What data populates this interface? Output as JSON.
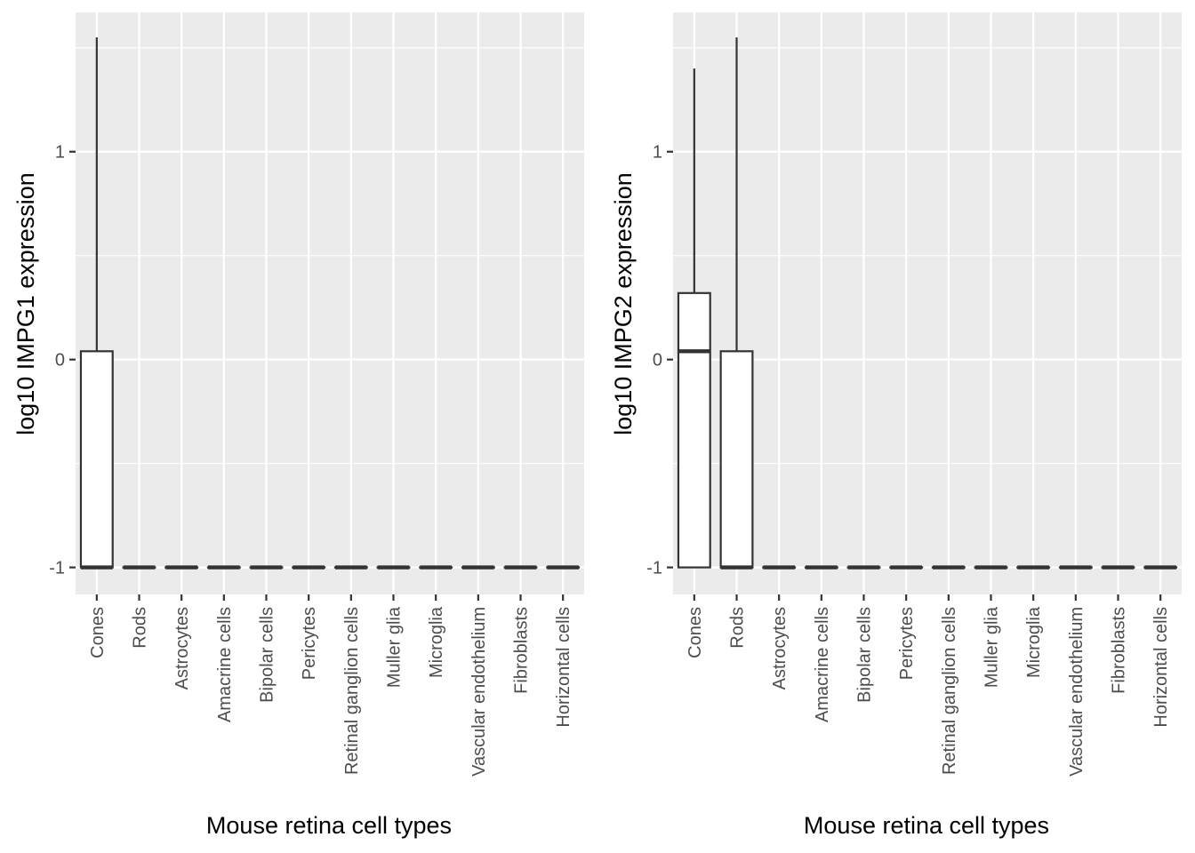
{
  "chart_data": [
    {
      "type": "boxplot",
      "xlabel": "Mouse retina cell types",
      "ylabel": "log10 IMPG1 expression",
      "categories": [
        "Cones",
        "Rods",
        "Astrocytes",
        "Amacrine cells",
        "Bipolar cells",
        "Pericytes",
        "Retinal ganglion cells",
        "Muller glia",
        "Microglia",
        "Vascular endothelium",
        "Fibroblasts",
        "Horizontal cells"
      ],
      "yticks": [
        -1,
        0,
        1
      ],
      "ylim": [
        -1.13,
        1.67
      ],
      "grid": true,
      "boxes": [
        {
          "category": "Cones",
          "whisker_low": -1,
          "q1": -1,
          "median": -1,
          "q3": 0.04,
          "whisker_high": 1.55
        },
        {
          "category": "Rods",
          "whisker_low": -1,
          "q1": -1,
          "median": -1,
          "q3": -1,
          "whisker_high": -1
        },
        {
          "category": "Astrocytes",
          "whisker_low": -1,
          "q1": -1,
          "median": -1,
          "q3": -1,
          "whisker_high": -1
        },
        {
          "category": "Amacrine cells",
          "whisker_low": -1,
          "q1": -1,
          "median": -1,
          "q3": -1,
          "whisker_high": -1
        },
        {
          "category": "Bipolar cells",
          "whisker_low": -1,
          "q1": -1,
          "median": -1,
          "q3": -1,
          "whisker_high": -1
        },
        {
          "category": "Pericytes",
          "whisker_low": -1,
          "q1": -1,
          "median": -1,
          "q3": -1,
          "whisker_high": -1
        },
        {
          "category": "Retinal ganglion cells",
          "whisker_low": -1,
          "q1": -1,
          "median": -1,
          "q3": -1,
          "whisker_high": -1
        },
        {
          "category": "Muller glia",
          "whisker_low": -1,
          "q1": -1,
          "median": -1,
          "q3": -1,
          "whisker_high": -1
        },
        {
          "category": "Microglia",
          "whisker_low": -1,
          "q1": -1,
          "median": -1,
          "q3": -1,
          "whisker_high": -1
        },
        {
          "category": "Vascular endothelium",
          "whisker_low": -1,
          "q1": -1,
          "median": -1,
          "q3": -1,
          "whisker_high": -1
        },
        {
          "category": "Fibroblasts",
          "whisker_low": -1,
          "q1": -1,
          "median": -1,
          "q3": -1,
          "whisker_high": -1
        },
        {
          "category": "Horizontal cells",
          "whisker_low": -1,
          "q1": -1,
          "median": -1,
          "q3": -1,
          "whisker_high": -1
        }
      ]
    },
    {
      "type": "boxplot",
      "xlabel": "Mouse retina cell types",
      "ylabel": "log10 IMPG2 expression",
      "categories": [
        "Cones",
        "Rods",
        "Astrocytes",
        "Amacrine cells",
        "Bipolar cells",
        "Pericytes",
        "Retinal ganglion cells",
        "Muller glia",
        "Microglia",
        "Vascular endothelium",
        "Fibroblasts",
        "Horizontal cells"
      ],
      "yticks": [
        -1,
        0,
        1
      ],
      "ylim": [
        -1.13,
        1.67
      ],
      "grid": true,
      "boxes": [
        {
          "category": "Cones",
          "whisker_low": -1,
          "q1": -1,
          "median": 0.04,
          "q3": 0.32,
          "whisker_high": 1.4
        },
        {
          "category": "Rods",
          "whisker_low": -1,
          "q1": -1,
          "median": -1,
          "q3": 0.04,
          "whisker_high": 1.55
        },
        {
          "category": "Astrocytes",
          "whisker_low": -1,
          "q1": -1,
          "median": -1,
          "q3": -1,
          "whisker_high": -1
        },
        {
          "category": "Amacrine cells",
          "whisker_low": -1,
          "q1": -1,
          "median": -1,
          "q3": -1,
          "whisker_high": -1
        },
        {
          "category": "Bipolar cells",
          "whisker_low": -1,
          "q1": -1,
          "median": -1,
          "q3": -1,
          "whisker_high": -1
        },
        {
          "category": "Pericytes",
          "whisker_low": -1,
          "q1": -1,
          "median": -1,
          "q3": -1,
          "whisker_high": -1
        },
        {
          "category": "Retinal ganglion cells",
          "whisker_low": -1,
          "q1": -1,
          "median": -1,
          "q3": -1,
          "whisker_high": -1
        },
        {
          "category": "Muller glia",
          "whisker_low": -1,
          "q1": -1,
          "median": -1,
          "q3": -1,
          "whisker_high": -1
        },
        {
          "category": "Microglia",
          "whisker_low": -1,
          "q1": -1,
          "median": -1,
          "q3": -1,
          "whisker_high": -1
        },
        {
          "category": "Vascular endothelium",
          "whisker_low": -1,
          "q1": -1,
          "median": -1,
          "q3": -1,
          "whisker_high": -1
        },
        {
          "category": "Fibroblasts",
          "whisker_low": -1,
          "q1": -1,
          "median": -1,
          "q3": -1,
          "whisker_high": -1
        },
        {
          "category": "Horizontal cells",
          "whisker_low": -1,
          "q1": -1,
          "median": -1,
          "q3": -1,
          "whisker_high": -1
        }
      ]
    }
  ],
  "colors": {
    "panel_background": "#ebebeb",
    "gridline": "#ffffff",
    "box_outline": "#333333",
    "box_fill": "#ffffff",
    "tick_label": "#4d4d4d",
    "axis_title": "#000000"
  }
}
